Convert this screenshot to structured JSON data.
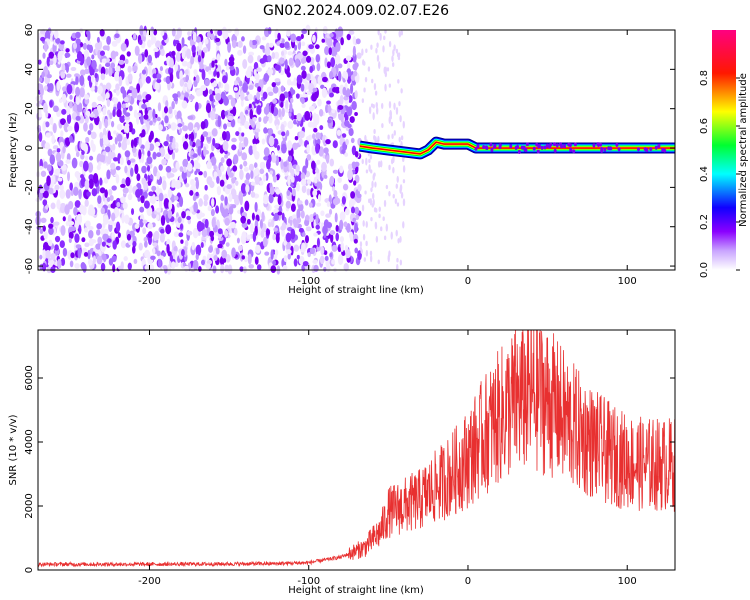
{
  "title": "GN02.2024.009.02.07.E26",
  "chart_data": [
    {
      "type": "heatmap",
      "title": "GN02.2024.009.02.07.E26",
      "xlabel": "Height of straight line (km)",
      "ylabel": "Frequency (Hz)",
      "xlim": [
        -270,
        130
      ],
      "ylim": [
        -62,
        60
      ],
      "xticks": [
        "-200",
        "-100",
        "0",
        "100"
      ],
      "yticks": [
        "-60",
        "-40",
        "-20",
        "0",
        "20",
        "40",
        "60"
      ],
      "noise_region_x": [
        -270,
        -68
      ],
      "signal_start_x": -68,
      "signal_trace": [
        {
          "x": -68,
          "y": 1
        },
        {
          "x": -60,
          "y": 0
        },
        {
          "x": -50,
          "y": -1
        },
        {
          "x": -40,
          "y": -2
        },
        {
          "x": -30,
          "y": -3
        },
        {
          "x": -25,
          "y": -1
        },
        {
          "x": -20,
          "y": 3
        },
        {
          "x": -15,
          "y": 2
        },
        {
          "x": -10,
          "y": 2
        },
        {
          "x": 0,
          "y": 2
        },
        {
          "x": 5,
          "y": 0
        },
        {
          "x": 130,
          "y": 0
        }
      ],
      "colorbar": {
        "label": "Normalized spectral amplitude",
        "ticks": [
          "0.0",
          "0.2",
          "0.4",
          "0.6",
          "0.8"
        ],
        "range": [
          0,
          1
        ],
        "colors": [
          "#ffffff",
          "#8b00ff",
          "#0000ff",
          "#00ffff",
          "#00ff00",
          "#ffff00",
          "#ff0000",
          "#ff0080"
        ]
      },
      "grid": false
    },
    {
      "type": "line",
      "xlabel": "Height of straight line (km)",
      "ylabel": "SNR (10 * v/v)",
      "xlim": [
        -270,
        130
      ],
      "ylim": [
        0,
        7500
      ],
      "xticks": [
        "-200",
        "-100",
        "0",
        "100"
      ],
      "yticks": [
        "0",
        "2000",
        "4000",
        "6000"
      ],
      "color": "#e83030",
      "envelope": [
        {
          "x": -270,
          "y": 180
        },
        {
          "x": -200,
          "y": 180
        },
        {
          "x": -150,
          "y": 190
        },
        {
          "x": -120,
          "y": 200
        },
        {
          "x": -100,
          "y": 230
        },
        {
          "x": -80,
          "y": 400
        },
        {
          "x": -65,
          "y": 700
        },
        {
          "x": -55,
          "y": 1200
        },
        {
          "x": -50,
          "y": 1800
        },
        {
          "x": -40,
          "y": 2000
        },
        {
          "x": -30,
          "y": 2200
        },
        {
          "x": -20,
          "y": 2600
        },
        {
          "x": -10,
          "y": 3000
        },
        {
          "x": 0,
          "y": 3500
        },
        {
          "x": 10,
          "y": 4200
        },
        {
          "x": 20,
          "y": 4800
        },
        {
          "x": 30,
          "y": 5300
        },
        {
          "x": 40,
          "y": 5500
        },
        {
          "x": 50,
          "y": 5300
        },
        {
          "x": 60,
          "y": 4800
        },
        {
          "x": 70,
          "y": 4300
        },
        {
          "x": 80,
          "y": 3900
        },
        {
          "x": 90,
          "y": 3600
        },
        {
          "x": 100,
          "y": 3400
        },
        {
          "x": 110,
          "y": 3300
        },
        {
          "x": 120,
          "y": 3300
        },
        {
          "x": 130,
          "y": 3300
        }
      ],
      "peak": {
        "x": 45,
        "y": 7400
      },
      "grid": false
    }
  ]
}
